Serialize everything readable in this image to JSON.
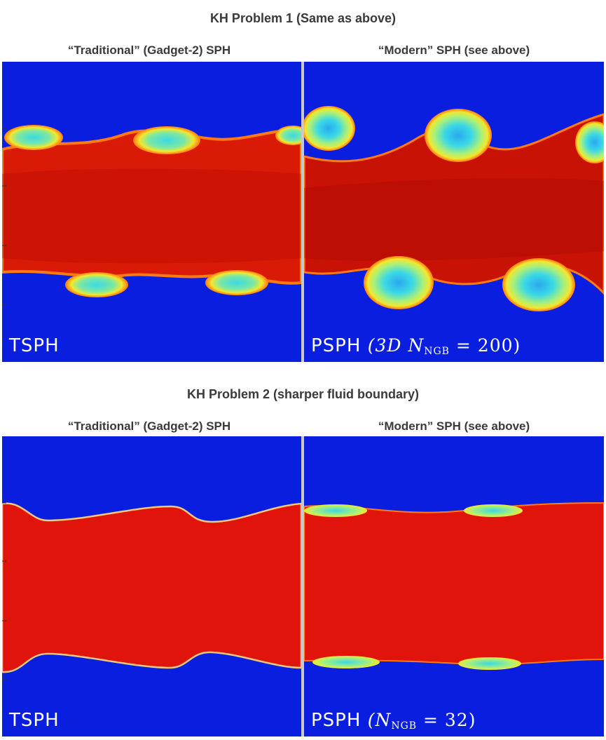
{
  "section1": {
    "title": "KH Problem 1 (Same as above)",
    "left_header": "“Traditional” (Gadget-2) SPH",
    "right_header": "“Modern” SPH (see above)",
    "left_label": "TSPH",
    "right_label_prefix": "PSPH",
    "right_label_math": "(3D N",
    "right_label_sub": "NGB",
    "right_label_tail": " = 200)"
  },
  "section2": {
    "title": "KH Problem 2 (sharper fluid boundary)",
    "left_header": "“Traditional” (Gadget-2) SPH",
    "right_header": "“Modern” SPH (see above)",
    "left_label": "TSPH",
    "right_label_prefix": "PSPH",
    "right_label_math": "(N",
    "right_label_sub": "NGB",
    "right_label_tail": " = 32)"
  },
  "colors": {
    "blue": "#0a1ee0",
    "red": "#d81a06",
    "dark_red": "#b80a04",
    "cyan": "#3ad9e6",
    "yellow": "#f0e832",
    "orange": "#ff7a10"
  }
}
